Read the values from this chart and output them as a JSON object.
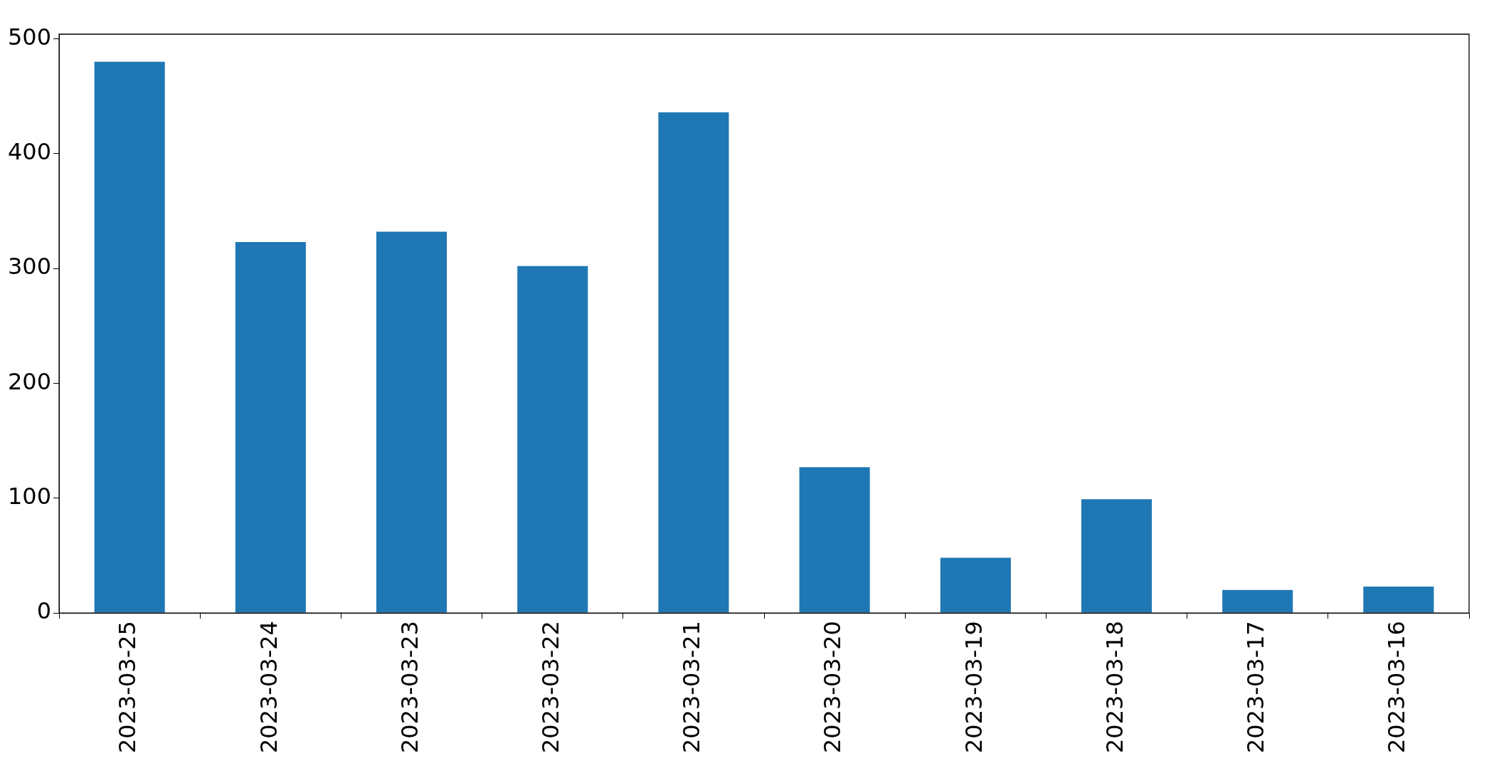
{
  "chart_data": {
    "type": "bar",
    "categories": [
      "2023-03-25",
      "2023-03-24",
      "2023-03-23",
      "2023-03-22",
      "2023-03-21",
      "2023-03-20",
      "2023-03-19",
      "2023-03-18",
      "2023-03-17",
      "2023-03-16"
    ],
    "values": [
      480,
      323,
      332,
      302,
      436,
      127,
      48,
      99,
      20,
      23
    ],
    "color": "#1f77b4",
    "ylim": [
      0,
      504
    ],
    "yticks": [
      0,
      100,
      200,
      300,
      400,
      500
    ]
  }
}
